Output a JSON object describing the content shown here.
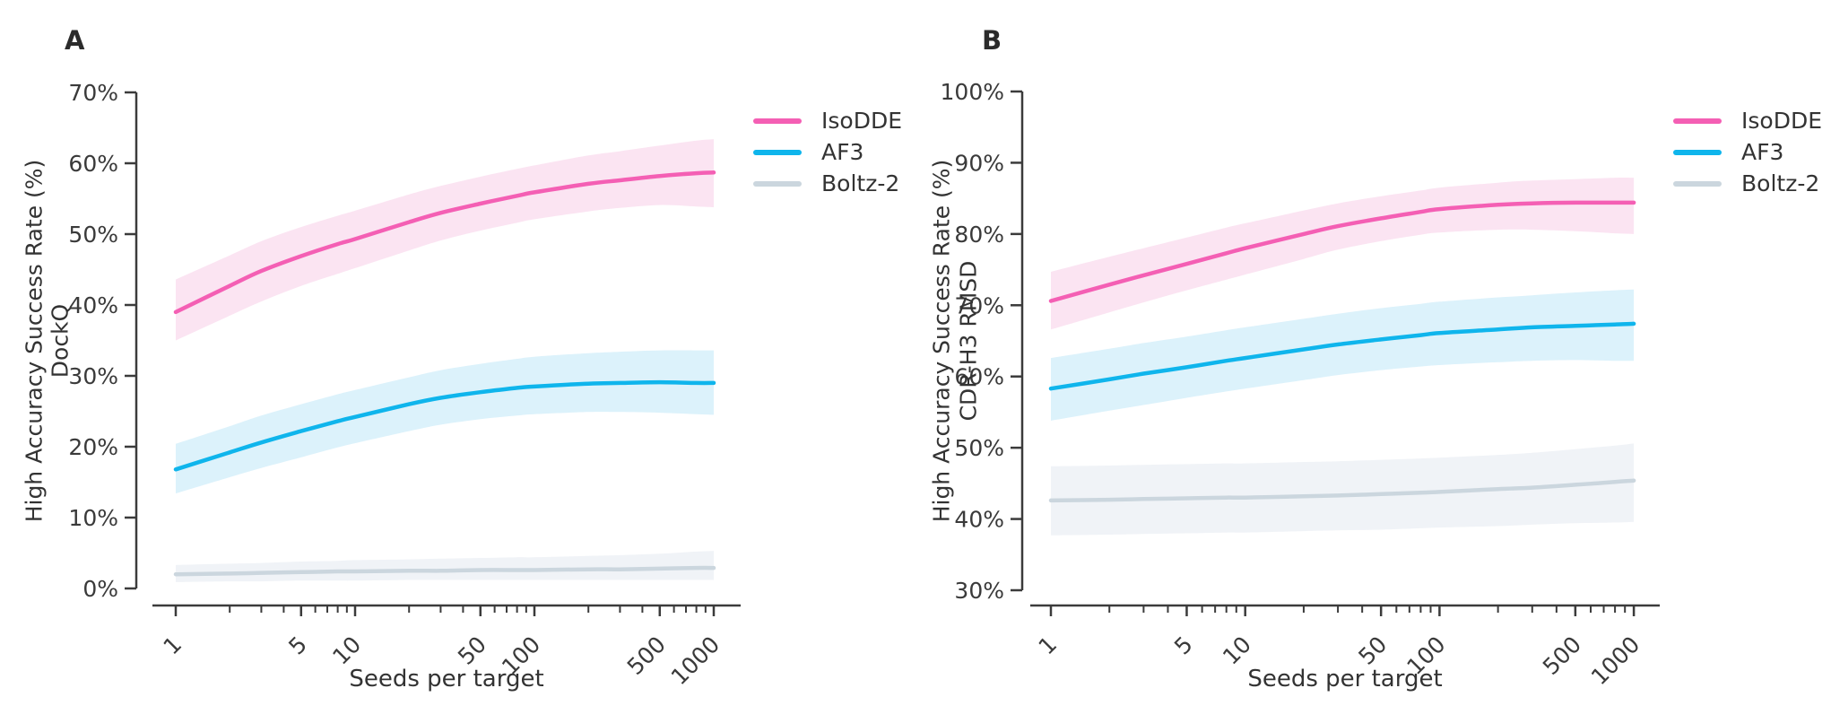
{
  "figure": {
    "background": "#ffffff",
    "axis_color": "#3b3b3b",
    "text_color": "#3a3a3a"
  },
  "chart_data": [
    {
      "id": "A",
      "type": "line",
      "title": "A",
      "ylabel_line1": "High Accuracy Success Rate (%)",
      "ylabel_line2": "DockQ",
      "xlabel": "Seeds per target",
      "xscale": "log",
      "x_range_shown": [
        1,
        1000
      ],
      "ylim": [
        0,
        70
      ],
      "yticks": [
        0,
        10,
        20,
        30,
        40,
        50,
        60,
        70
      ],
      "xticks_labeled": [
        1,
        5,
        10,
        50,
        100,
        500,
        1000
      ],
      "legend_position": "outside-upper-right",
      "x": [
        1,
        2,
        3,
        5,
        8,
        10,
        20,
        30,
        50,
        80,
        100,
        200,
        300,
        500,
        800,
        1000
      ],
      "series": [
        {
          "name": "IsoDDE",
          "color": "#F45FB4",
          "band_color": "#fbe4f2",
          "y": [
            39.0,
            42.7,
            44.8,
            46.9,
            48.6,
            49.3,
            51.7,
            53.0,
            54.3,
            55.4,
            55.9,
            57.1,
            57.6,
            58.2,
            58.6,
            58.7
          ],
          "hi": [
            43.6,
            47.0,
            49.0,
            51.0,
            52.6,
            53.3,
            55.6,
            56.8,
            58.1,
            59.2,
            59.7,
            61.1,
            61.7,
            62.5,
            63.2,
            63.4
          ],
          "lo": [
            35.0,
            38.5,
            40.5,
            42.7,
            44.4,
            45.2,
            47.7,
            49.1,
            50.5,
            51.6,
            52.1,
            53.2,
            53.7,
            54.1,
            53.9,
            53.8
          ]
        },
        {
          "name": "AF3",
          "color": "#0FB5EC",
          "band_color": "#dcf2fb",
          "y": [
            16.8,
            19.2,
            20.6,
            22.2,
            23.6,
            24.2,
            26.0,
            26.9,
            27.7,
            28.3,
            28.5,
            28.9,
            29.0,
            29.1,
            29.0,
            29.0
          ],
          "hi": [
            20.4,
            22.9,
            24.4,
            26.0,
            27.4,
            28.0,
            29.8,
            30.8,
            31.7,
            32.4,
            32.7,
            33.2,
            33.4,
            33.6,
            33.6,
            33.6
          ],
          "lo": [
            13.4,
            15.7,
            17.0,
            18.5,
            19.9,
            20.5,
            22.2,
            23.1,
            23.9,
            24.4,
            24.6,
            24.9,
            24.9,
            24.8,
            24.6,
            24.5
          ]
        },
        {
          "name": "Boltz-2",
          "color": "#CBD6DE",
          "band_color": "#f0f3f7",
          "y": [
            2.0,
            2.1,
            2.2,
            2.3,
            2.4,
            2.4,
            2.5,
            2.5,
            2.6,
            2.6,
            2.6,
            2.7,
            2.7,
            2.8,
            2.9,
            2.9
          ],
          "hi": [
            3.3,
            3.5,
            3.6,
            3.8,
            3.9,
            4.0,
            4.1,
            4.2,
            4.3,
            4.4,
            4.4,
            4.6,
            4.7,
            4.9,
            5.2,
            5.3
          ],
          "lo": [
            0.9,
            1.0,
            1.0,
            1.1,
            1.1,
            1.1,
            1.2,
            1.2,
            1.2,
            1.2,
            1.2,
            1.2,
            1.2,
            1.2,
            1.2,
            1.2
          ]
        }
      ]
    },
    {
      "id": "B",
      "type": "line",
      "title": "B",
      "ylabel_line1": "High Accuracy Success Rate (%)",
      "ylabel_line2": "CDR-H3 RMSD",
      "xlabel": "Seeds per target",
      "xscale": "log",
      "x_range_shown": [
        1,
        1000
      ],
      "ylim": [
        30,
        100
      ],
      "yticks": [
        30,
        40,
        50,
        60,
        70,
        80,
        90,
        100
      ],
      "xticks_labeled": [
        1,
        5,
        10,
        50,
        100,
        500,
        1000
      ],
      "legend_position": "outside-upper-right",
      "x": [
        1,
        2,
        3,
        5,
        8,
        10,
        20,
        30,
        50,
        80,
        100,
        200,
        300,
        500,
        800,
        1000
      ],
      "series": [
        {
          "name": "IsoDDE",
          "color": "#F45FB4",
          "band_color": "#fbe4f2",
          "y": [
            70.6,
            72.9,
            74.2,
            75.8,
            77.3,
            78.0,
            80.0,
            81.1,
            82.2,
            83.1,
            83.5,
            84.1,
            84.3,
            84.4,
            84.4,
            84.4
          ],
          "hi": [
            74.7,
            76.8,
            78.0,
            79.5,
            80.9,
            81.5,
            83.3,
            84.3,
            85.3,
            86.1,
            86.5,
            87.2,
            87.5,
            87.7,
            87.9,
            87.9
          ],
          "lo": [
            66.6,
            69.0,
            70.4,
            72.1,
            73.6,
            74.3,
            76.5,
            77.8,
            79.0,
            79.9,
            80.2,
            80.6,
            80.6,
            80.4,
            80.1,
            80.0
          ]
        },
        {
          "name": "AF3",
          "color": "#0FB5EC",
          "band_color": "#dcf2fb",
          "y": [
            58.3,
            59.6,
            60.4,
            61.3,
            62.2,
            62.6,
            63.8,
            64.5,
            65.2,
            65.8,
            66.1,
            66.6,
            66.9,
            67.1,
            67.3,
            67.4
          ],
          "hi": [
            62.6,
            63.9,
            64.7,
            65.6,
            66.5,
            66.9,
            68.1,
            68.8,
            69.6,
            70.2,
            70.5,
            71.1,
            71.4,
            71.8,
            72.1,
            72.2
          ],
          "lo": [
            53.8,
            55.2,
            56.0,
            57.0,
            57.9,
            58.3,
            59.5,
            60.2,
            60.9,
            61.4,
            61.6,
            62.0,
            62.2,
            62.3,
            62.2,
            62.2
          ]
        },
        {
          "name": "Boltz-2",
          "color": "#CBD6DE",
          "band_color": "#f0f3f7",
          "y": [
            42.6,
            42.7,
            42.8,
            42.9,
            43.0,
            43.0,
            43.2,
            43.3,
            43.5,
            43.7,
            43.8,
            44.2,
            44.4,
            44.8,
            45.2,
            45.4
          ],
          "hi": [
            47.4,
            47.5,
            47.6,
            47.7,
            47.8,
            47.8,
            48.0,
            48.1,
            48.3,
            48.5,
            48.6,
            49.0,
            49.3,
            49.8,
            50.3,
            50.6
          ],
          "lo": [
            37.7,
            37.8,
            37.9,
            38.0,
            38.1,
            38.1,
            38.3,
            38.4,
            38.5,
            38.7,
            38.8,
            39.0,
            39.2,
            39.4,
            39.5,
            39.6
          ]
        }
      ]
    }
  ]
}
